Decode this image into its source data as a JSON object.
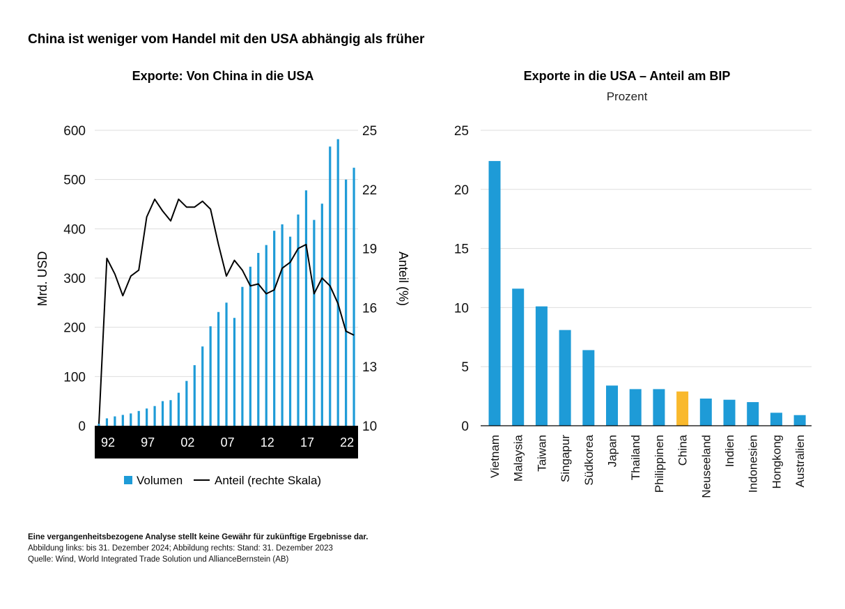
{
  "title": "China ist weniger vom Handel mit den USA abhängig als früher",
  "colors": {
    "bar": "#1e9bd7",
    "highlight": "#f9b92d",
    "line": "#000000",
    "grid": "#dddddd"
  },
  "chart_data": [
    {
      "type": "bar+line",
      "title": "Exporte: Von China in die USA",
      "ylabel": "Mrd. USD",
      "y2label": "Anteil (%)",
      "ylim": [
        0,
        600
      ],
      "yticks": [
        "0",
        "100",
        "200",
        "300",
        "400",
        "500",
        "600"
      ],
      "y2lim": [
        10,
        25
      ],
      "y2ticks": [
        "10",
        "13",
        "16",
        "19",
        "22",
        "25"
      ],
      "xtick_labels": [
        "92",
        "97",
        "02",
        "07",
        "12",
        "17",
        "22"
      ],
      "x": [
        1992,
        1993,
        1994,
        1995,
        1996,
        1997,
        1998,
        1999,
        2000,
        2001,
        2002,
        2003,
        2004,
        2005,
        2006,
        2007,
        2008,
        2009,
        2010,
        2011,
        2012,
        2013,
        2014,
        2015,
        2016,
        2017,
        2018,
        2019,
        2020,
        2021,
        2022,
        2023,
        2024
      ],
      "series": [
        {
          "name": "Volumen",
          "type": "bar",
          "axis": "left",
          "values": [
            4,
            15,
            19,
            22,
            25,
            30,
            35,
            40,
            50,
            52,
            67,
            91,
            123,
            161,
            202,
            231,
            250,
            219,
            282,
            323,
            351,
            367,
            396,
            409,
            384,
            429,
            478,
            418,
            451,
            567,
            582,
            500,
            524
          ]
        },
        {
          "name": "Anteil (rechte Skala)",
          "type": "line",
          "axis": "right",
          "values": [
            10.1,
            18.5,
            17.7,
            16.6,
            17.6,
            17.9,
            20.6,
            21.5,
            20.9,
            20.4,
            21.5,
            21.1,
            21.1,
            21.4,
            21.0,
            19.2,
            17.6,
            18.4,
            17.9,
            17.1,
            17.2,
            16.7,
            16.9,
            18.0,
            18.3,
            19.0,
            19.2,
            16.7,
            17.5,
            17.1,
            16.2,
            14.8,
            14.6
          ]
        }
      ],
      "legend": "bottom",
      "grid": true
    },
    {
      "type": "bar",
      "title": "Exporte in die USA – Anteil am BIP",
      "subtitle": "Prozent",
      "ylim": [
        0,
        25
      ],
      "yticks": [
        "0",
        "5",
        "10",
        "15",
        "20",
        "25"
      ],
      "categories": [
        "Vietnam",
        "Malaysia",
        "Taiwan",
        "Singapur",
        "Südkorea",
        "Japan",
        "Thailand",
        "Philippinen",
        "China",
        "Neuseeland",
        "Indien",
        "Indonesien",
        "Hongkong",
        "Australien"
      ],
      "values": [
        22.4,
        11.6,
        10.1,
        8.1,
        6.4,
        3.4,
        3.1,
        3.1,
        2.9,
        2.3,
        2.2,
        2.0,
        1.1,
        0.9
      ],
      "highlight": "China",
      "grid": true
    }
  ],
  "footer": {
    "disclaimer": "Eine vergangenheitsbezogene Analyse stellt keine Gewähr für zukünftige Ergebnisse dar.",
    "dates": "Abbildung links: bis 31. Dezember 2024; Abbildung rechts: Stand: 31. Dezember 2023",
    "source": "Quelle: Wind, World Integrated Trade Solution und AllianceBernstein (AB)"
  }
}
